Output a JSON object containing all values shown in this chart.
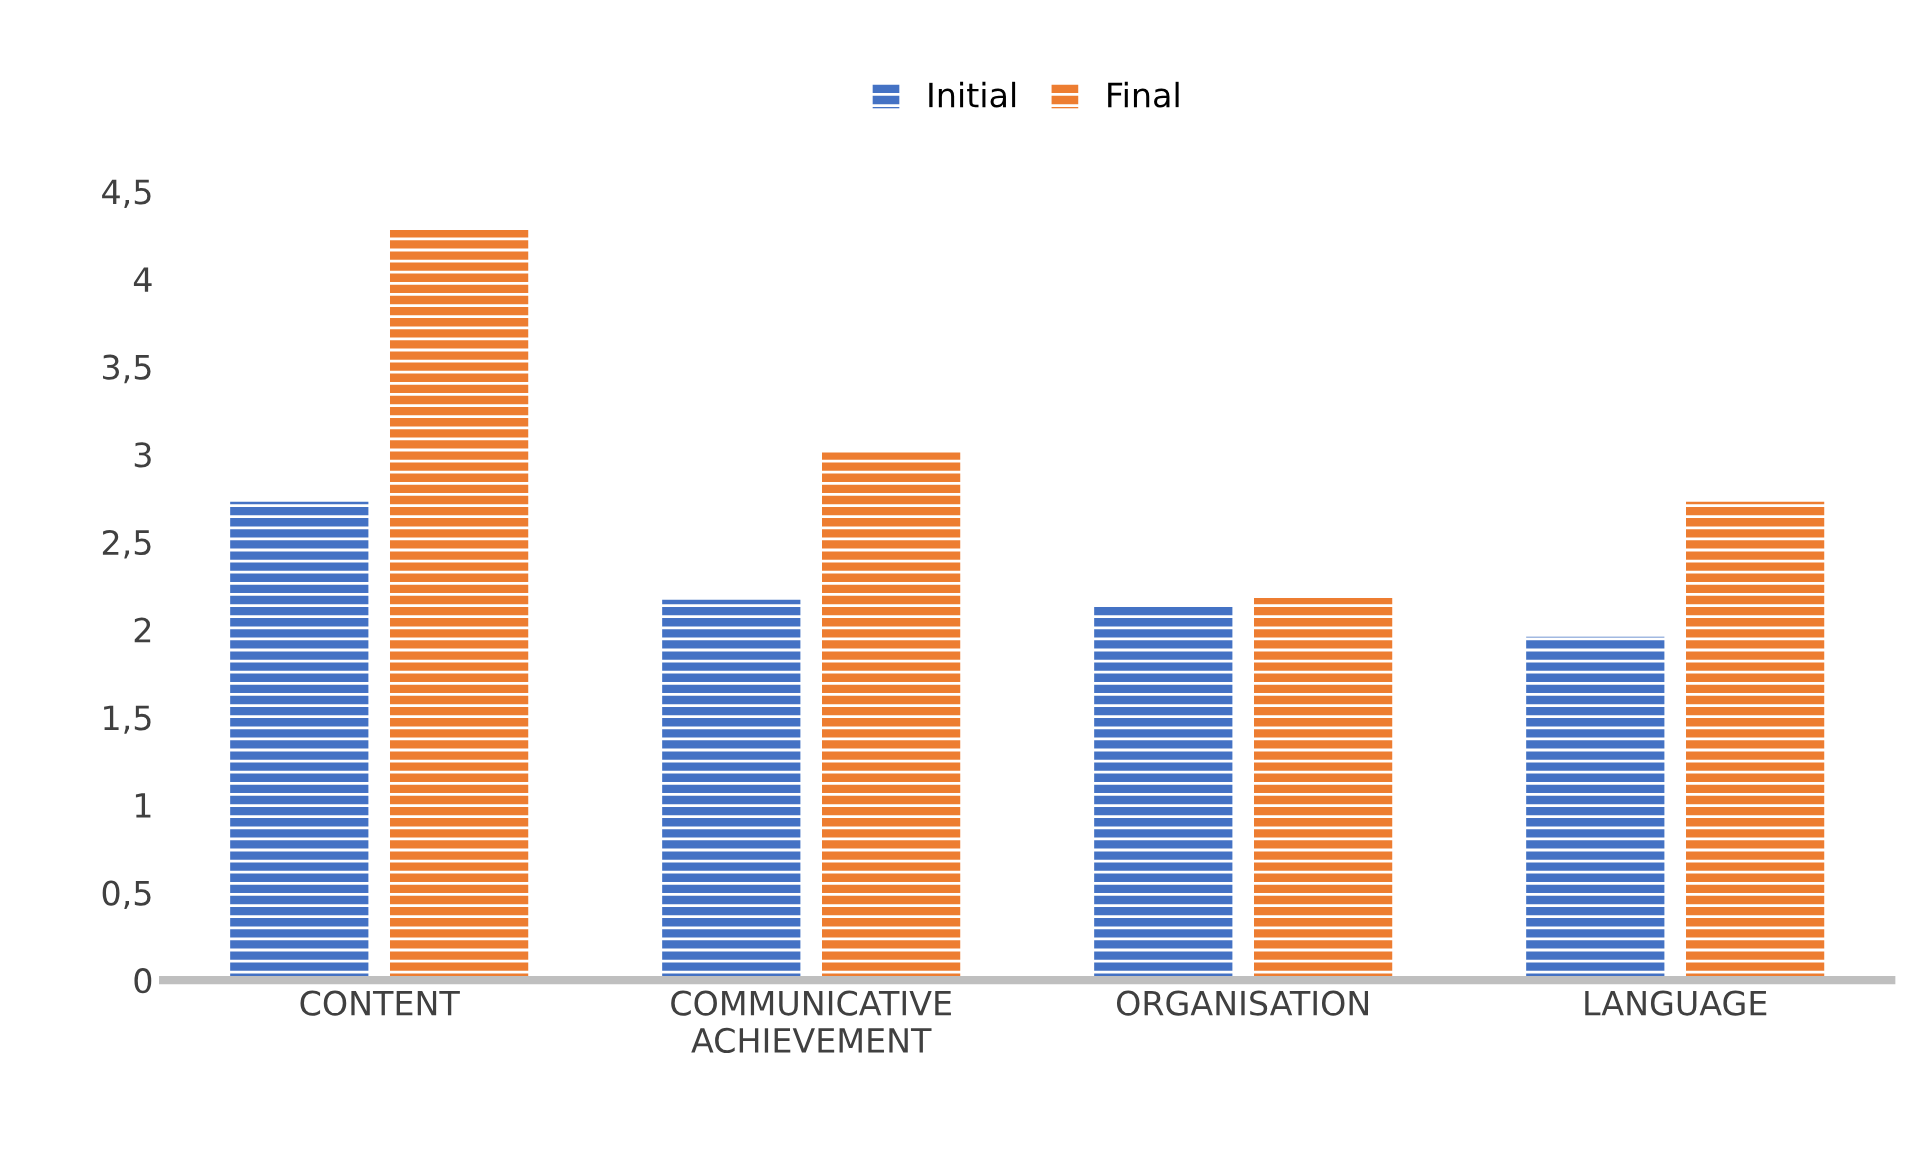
{
  "chart_data": {
    "type": "bar",
    "categories": [
      "CONTENT",
      "COMMUNICATIVE\nACHIEVEMENT",
      "ORGANISATION",
      "LANGUAGE"
    ],
    "series": [
      {
        "name": "Initial",
        "color": "#4472c4",
        "values": [
          2.73,
          2.17,
          2.13,
          1.96
        ]
      },
      {
        "name": "Final",
        "color": "#ed7d31",
        "values": [
          4.28,
          3.01,
          2.18,
          2.73
        ]
      }
    ],
    "ylim": [
      0,
      4.5
    ],
    "yticks": [
      0,
      {
        "value": 0.5,
        "label": "0,5"
      },
      1,
      {
        "value": 1.5,
        "label": "1,5"
      },
      2,
      {
        "value": 2.5,
        "label": "2,5"
      },
      3,
      {
        "value": 3.5,
        "label": "3,5"
      },
      4,
      {
        "value": 4.5,
        "label": "4,5"
      }
    ],
    "grid": false,
    "legend": "top"
  }
}
